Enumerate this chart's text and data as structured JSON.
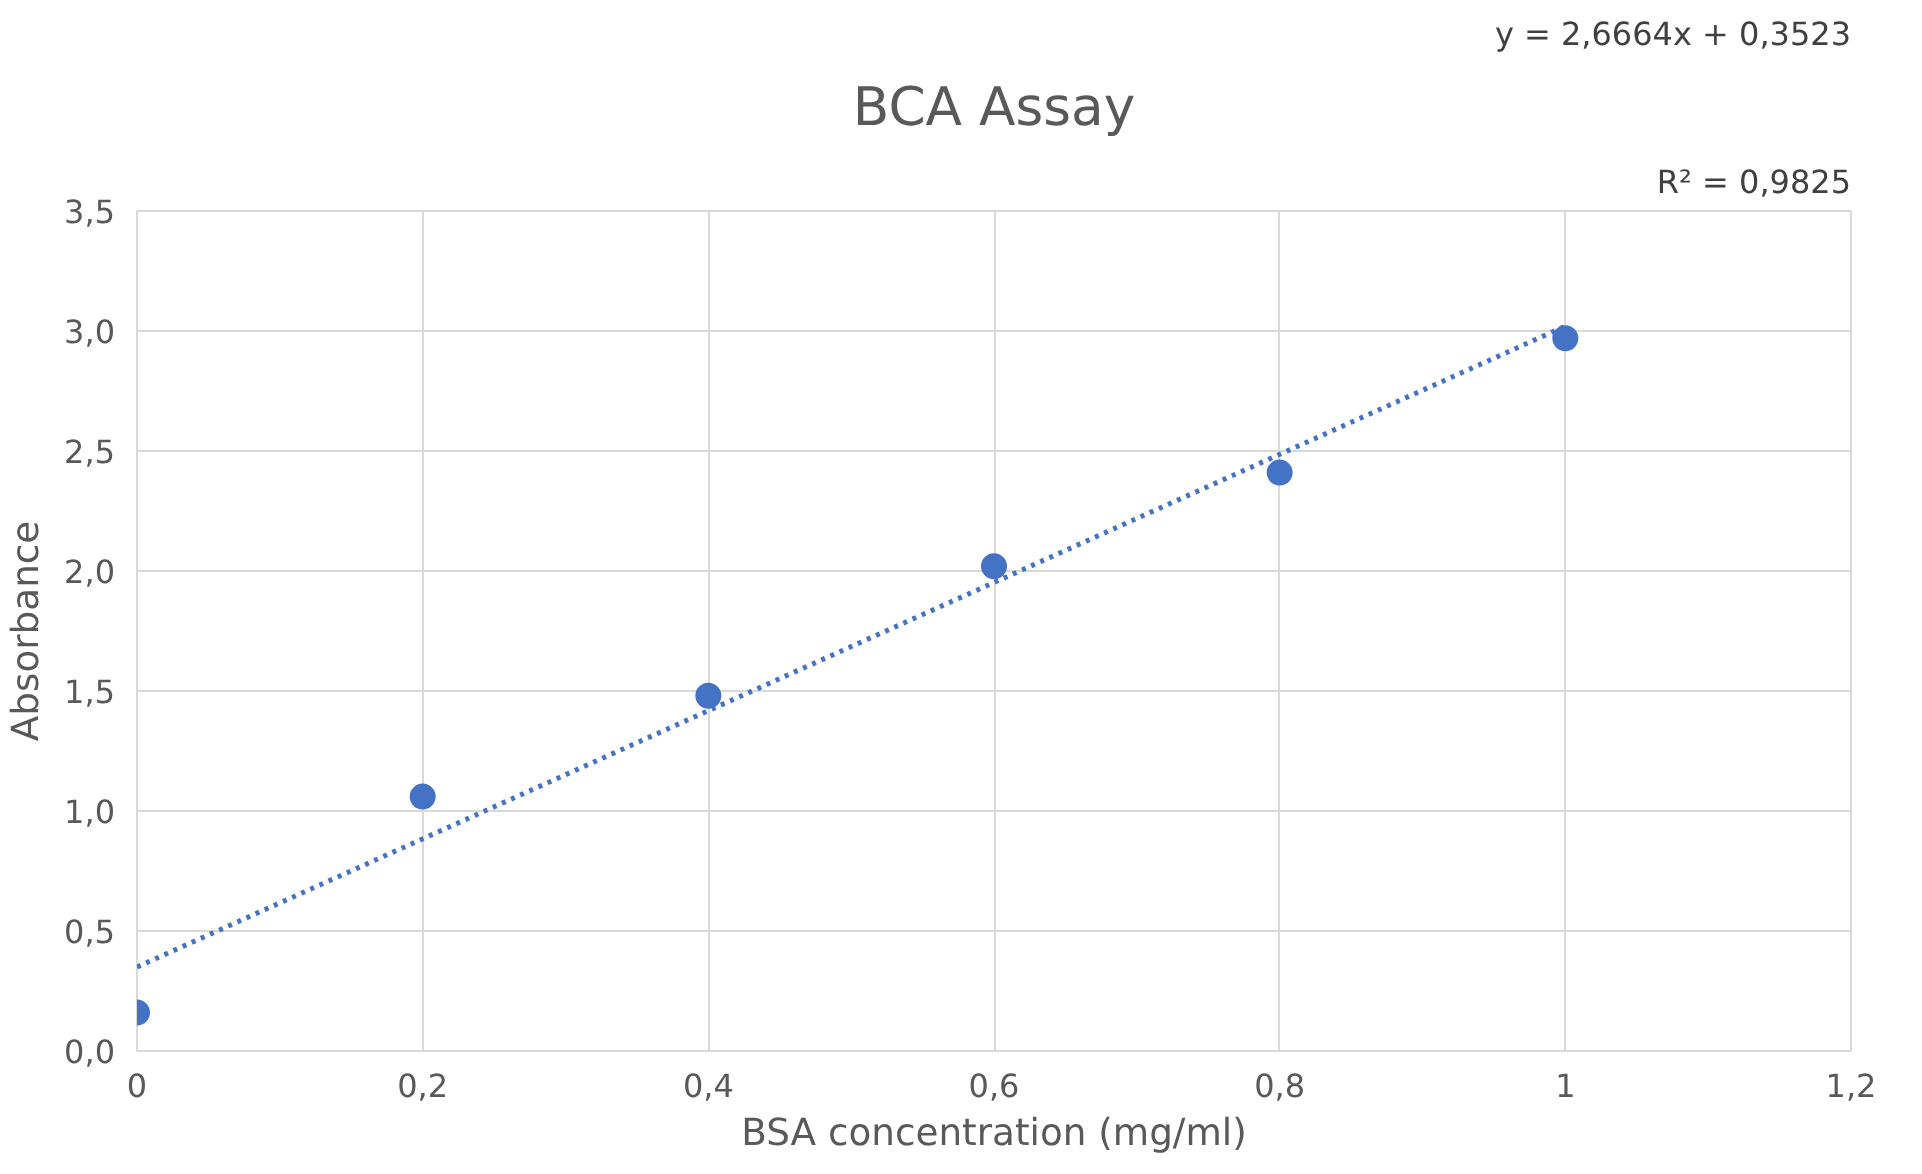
{
  "chart_data": {
    "type": "scatter",
    "title": "BCA Assay",
    "xlabel": "BSA concentration (mg/ml)",
    "ylabel": "Absorbance",
    "annotations": [
      "y = 2,6664x + 0,3523",
      "R² = 0,9825"
    ],
    "xlim": [
      0,
      1.2
    ],
    "ylim": [
      0,
      3.5
    ],
    "xticks": [
      0,
      {
        "value": 0.2,
        "label": "0,2"
      },
      {
        "value": 0.4,
        "label": "0,4"
      },
      {
        "value": 0.6,
        "label": "0,6"
      },
      {
        "value": 0.8,
        "label": "0,8"
      },
      1,
      {
        "value": 1.2,
        "label": "1,2"
      }
    ],
    "yticks": [
      {
        "value": 0,
        "label": "0,0"
      },
      {
        "value": 0.5,
        "label": "0,5"
      },
      {
        "value": 1.0,
        "label": "1,0"
      },
      {
        "value": 1.5,
        "label": "1,5"
      },
      {
        "value": 2.0,
        "label": "2,0"
      },
      {
        "value": 2.5,
        "label": "2,5"
      },
      {
        "value": 3.0,
        "label": "3,0"
      },
      {
        "value": 3.5,
        "label": "3,5"
      }
    ],
    "grid": true,
    "marker": "circle",
    "series": [
      {
        "color": "#4472c4",
        "x": [
          0,
          0.2,
          0.4,
          0.6,
          0.8,
          1
        ],
        "values": [
          0.16,
          1.06,
          1.48,
          2.02,
          2.41,
          2.97
        ]
      },
      {
        "type": "line",
        "color": "#4472c4",
        "line_style": "dotted",
        "marker": "none",
        "x": [
          0,
          1
        ],
        "values": [
          0.35,
          3.02
        ]
      }
    ]
  }
}
